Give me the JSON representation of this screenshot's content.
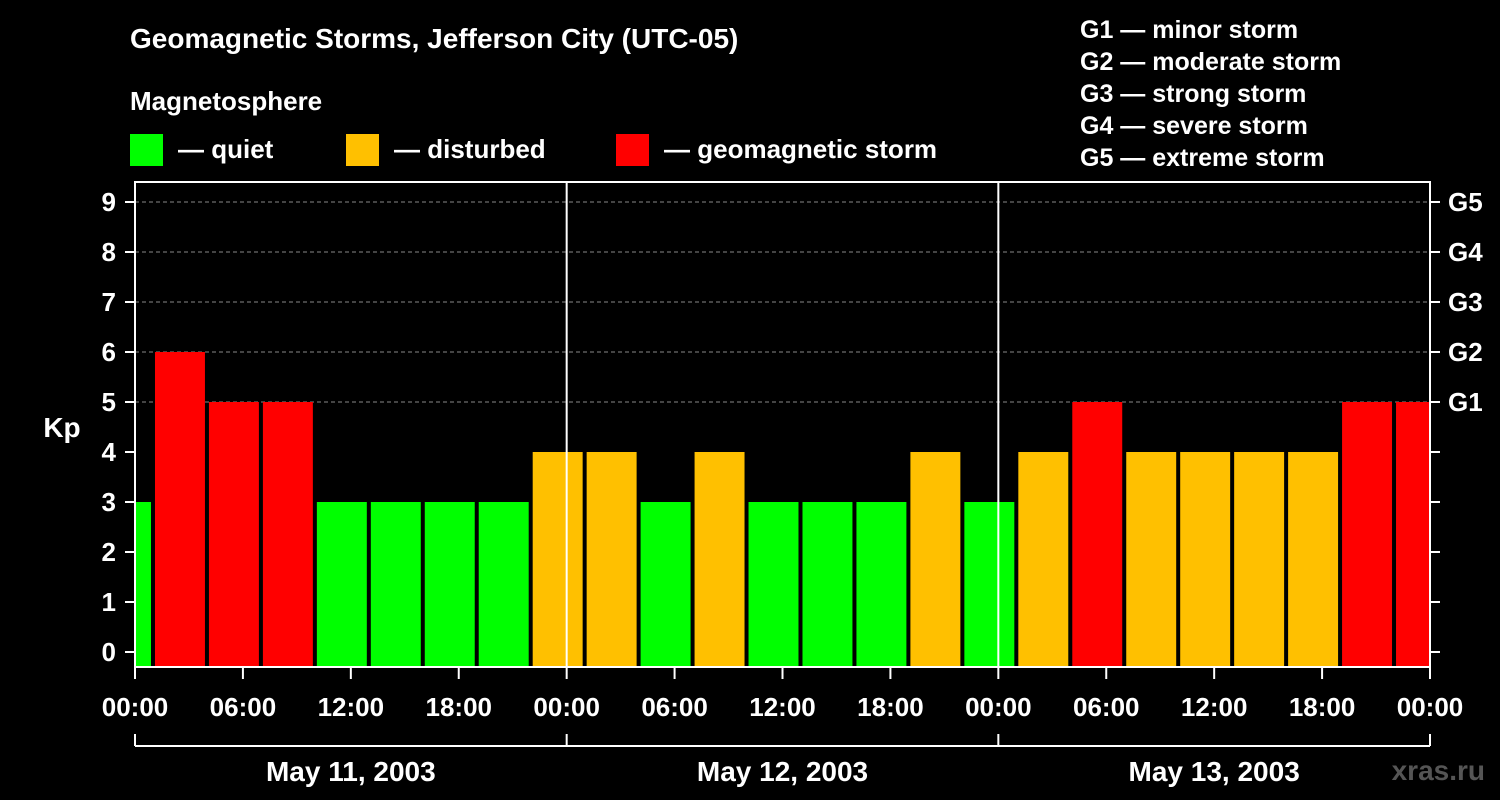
{
  "chart_data": {
    "type": "bar",
    "title": "Geomagnetic Storms, Jefferson City (UTC-05)",
    "legend_title": "Magnetosphere",
    "legend": [
      {
        "label": "— quiet",
        "color": "#00ff00"
      },
      {
        "label": "— disturbed",
        "color": "#ffc000"
      },
      {
        "label": "— geomagnetic storm",
        "color": "#ff0000"
      }
    ],
    "storm_scale": [
      "G1 — minor storm",
      "G2 — moderate storm",
      "G3 — strong storm",
      "G4 — severe storm",
      "G5 — extreme storm"
    ],
    "ylabel": "Kp",
    "ylim": [
      0,
      9
    ],
    "y_ticks": [
      "0",
      "1",
      "2",
      "3",
      "4",
      "5",
      "6",
      "7",
      "8",
      "9"
    ],
    "right_labels": [
      {
        "kp": 5,
        "label": "G1"
      },
      {
        "kp": 6,
        "label": "G2"
      },
      {
        "kp": 7,
        "label": "G3"
      },
      {
        "kp": 8,
        "label": "G4"
      },
      {
        "kp": 9,
        "label": "G5"
      }
    ],
    "x_ticks": [
      "00:00",
      "06:00",
      "12:00",
      "18:00",
      "00:00",
      "06:00",
      "12:00",
      "18:00",
      "00:00",
      "06:00",
      "12:00",
      "18:00",
      "00:00"
    ],
    "days": [
      "May 11, 2003",
      "May 12, 2003",
      "May 13, 2003"
    ],
    "x_start": "2003-05-11 00:00",
    "x_end": "2003-05-14 00:00",
    "bars": [
      {
        "start": "2003-05-10 22:00",
        "end": "2003-05-11 01:00",
        "kp": 3,
        "level": "quiet"
      },
      {
        "start": "2003-05-11 01:00",
        "end": "2003-05-11 04:00",
        "kp": 6,
        "level": "storm"
      },
      {
        "start": "2003-05-11 04:00",
        "end": "2003-05-11 07:00",
        "kp": 5,
        "level": "storm"
      },
      {
        "start": "2003-05-11 07:00",
        "end": "2003-05-11 10:00",
        "kp": 5,
        "level": "storm"
      },
      {
        "start": "2003-05-11 10:00",
        "end": "2003-05-11 13:00",
        "kp": 3,
        "level": "quiet"
      },
      {
        "start": "2003-05-11 13:00",
        "end": "2003-05-11 16:00",
        "kp": 3,
        "level": "quiet"
      },
      {
        "start": "2003-05-11 16:00",
        "end": "2003-05-11 19:00",
        "kp": 3,
        "level": "quiet"
      },
      {
        "start": "2003-05-11 19:00",
        "end": "2003-05-11 22:00",
        "kp": 3,
        "level": "quiet"
      },
      {
        "start": "2003-05-11 22:00",
        "end": "2003-05-12 01:00",
        "kp": 4,
        "level": "disturbed"
      },
      {
        "start": "2003-05-12 01:00",
        "end": "2003-05-12 04:00",
        "kp": 4,
        "level": "disturbed"
      },
      {
        "start": "2003-05-12 04:00",
        "end": "2003-05-12 07:00",
        "kp": 3,
        "level": "quiet"
      },
      {
        "start": "2003-05-12 07:00",
        "end": "2003-05-12 10:00",
        "kp": 4,
        "level": "disturbed"
      },
      {
        "start": "2003-05-12 10:00",
        "end": "2003-05-12 13:00",
        "kp": 3,
        "level": "quiet"
      },
      {
        "start": "2003-05-12 13:00",
        "end": "2003-05-12 16:00",
        "kp": 3,
        "level": "quiet"
      },
      {
        "start": "2003-05-12 16:00",
        "end": "2003-05-12 19:00",
        "kp": 3,
        "level": "quiet"
      },
      {
        "start": "2003-05-12 19:00",
        "end": "2003-05-12 22:00",
        "kp": 4,
        "level": "disturbed"
      },
      {
        "start": "2003-05-12 22:00",
        "end": "2003-05-13 01:00",
        "kp": 3,
        "level": "quiet"
      },
      {
        "start": "2003-05-13 01:00",
        "end": "2003-05-13 04:00",
        "kp": 4,
        "level": "disturbed"
      },
      {
        "start": "2003-05-13 04:00",
        "end": "2003-05-13 07:00",
        "kp": 5,
        "level": "storm"
      },
      {
        "start": "2003-05-13 07:00",
        "end": "2003-05-13 10:00",
        "kp": 4,
        "level": "disturbed"
      },
      {
        "start": "2003-05-13 10:00",
        "end": "2003-05-13 13:00",
        "kp": 4,
        "level": "disturbed"
      },
      {
        "start": "2003-05-13 13:00",
        "end": "2003-05-13 16:00",
        "kp": 4,
        "level": "disturbed"
      },
      {
        "start": "2003-05-13 16:00",
        "end": "2003-05-13 19:00",
        "kp": 4,
        "level": "disturbed"
      },
      {
        "start": "2003-05-13 19:00",
        "end": "2003-05-13 22:00",
        "kp": 5,
        "level": "storm"
      },
      {
        "start": "2003-05-13 22:00",
        "end": "2003-05-14 01:00",
        "kp": 5,
        "level": "storm"
      }
    ],
    "colors": {
      "quiet": "#00ff00",
      "disturbed": "#ffc000",
      "storm": "#ff0000"
    },
    "grid": "dashed horizontal at each Kp level above 5, day separators vertical"
  },
  "watermark": "xras.ru"
}
